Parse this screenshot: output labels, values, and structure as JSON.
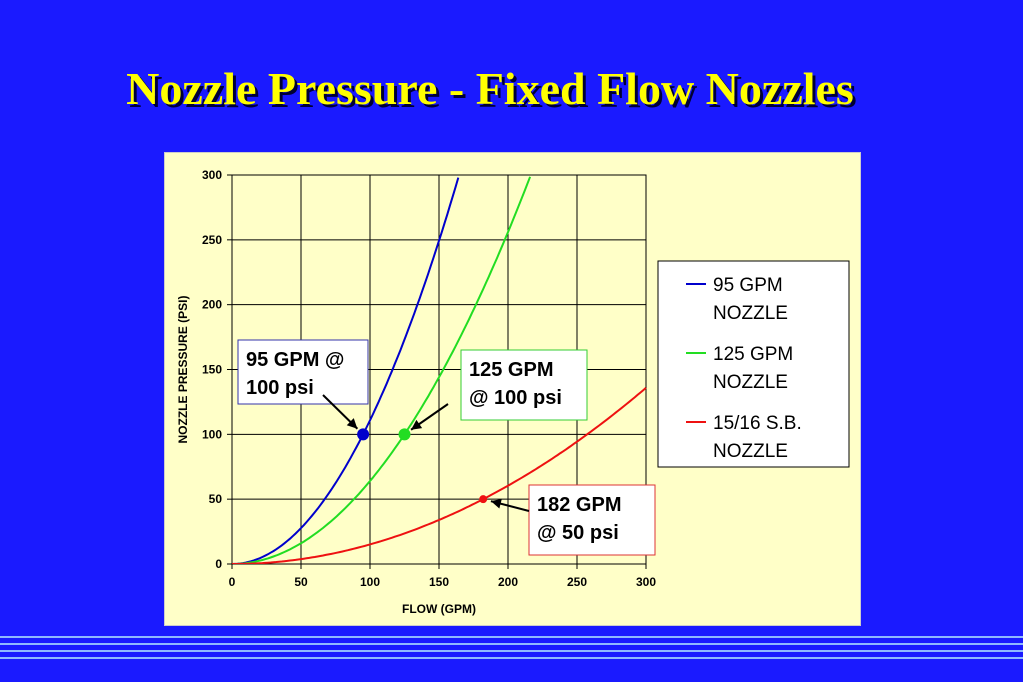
{
  "slide": {
    "title": "Nozzle Pressure - Fixed Flow Nozzles"
  },
  "chart_data": {
    "type": "line",
    "xlabel": "FLOW (GPM)",
    "ylabel": "NOZZLE PRESSURE (PSI)",
    "xlim": [
      0,
      300
    ],
    "ylim": [
      0,
      300
    ],
    "xticks": [
      0,
      50,
      100,
      150,
      200,
      250,
      300
    ],
    "yticks": [
      0,
      50,
      100,
      150,
      200,
      250,
      300
    ],
    "grid": true,
    "legend_position": "right",
    "series": [
      {
        "name": "95 GPM NOZZLE",
        "name_lines": [
          "95 GPM",
          "NOZZLE"
        ],
        "color": "#0000cc",
        "k": 95,
        "p": 100,
        "xmax": 165
      },
      {
        "name": "125 GPM NOZZLE",
        "name_lines": [
          "125 GPM",
          "NOZZLE"
        ],
        "color": "#22dd22",
        "k": 125,
        "p": 100,
        "xmax": 217
      },
      {
        "name": "15/16 S.B. NOZZLE",
        "name_lines": [
          "15/16 S.B.",
          "NOZZLE"
        ],
        "color": "#ee1111",
        "k": 182,
        "p": 50,
        "xmax": 300
      }
    ],
    "annotations": [
      {
        "lines": [
          "95 GPM @",
          "100 psi"
        ],
        "point": [
          95,
          100
        ],
        "color": "#0000cc",
        "border": "#3333aa"
      },
      {
        "lines": [
          "125 GPM",
          "@ 100 psi"
        ],
        "point": [
          125,
          100
        ],
        "color": "#22dd22",
        "border": "#33cc33"
      },
      {
        "lines": [
          "182 GPM",
          "@ 50 psi"
        ],
        "point": [
          182,
          50
        ],
        "color": "#ee1111",
        "border": "#dd3333"
      }
    ]
  }
}
